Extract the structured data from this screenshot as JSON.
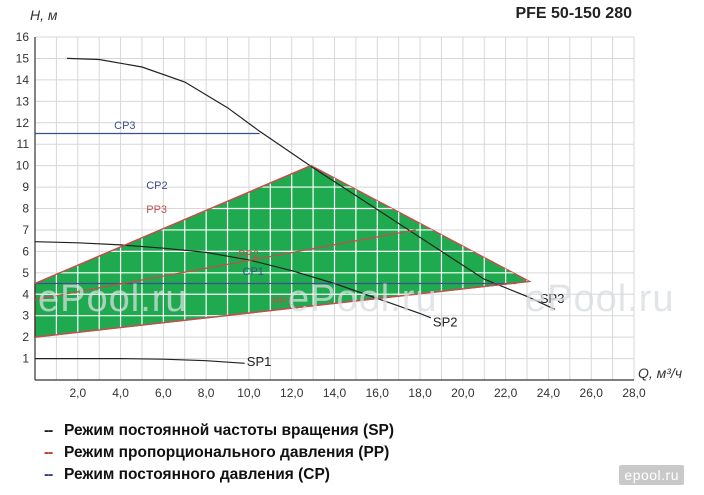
{
  "chart_data": {
    "type": "line",
    "title": "PFE 50-150 280",
    "ylabel": "H, м",
    "xlabel": "Q, м³/ч",
    "xlim": [
      0,
      28
    ],
    "ylim": [
      0,
      16
    ],
    "x_ticks": [
      "2,0",
      "4,0",
      "6,0",
      "8,0",
      "10,0",
      "12,0",
      "14,0",
      "16,0",
      "18,0",
      "20,0",
      "22,0",
      "24,0",
      "26,0",
      "28,0"
    ],
    "y_ticks": [
      "1",
      "2",
      "3",
      "4",
      "5",
      "6",
      "7",
      "8",
      "9",
      "10",
      "11",
      "12",
      "13",
      "14",
      "15",
      "16"
    ],
    "grid": true,
    "operating_area": [
      [
        0,
        4.5
      ],
      [
        12.9,
        10.0
      ],
      [
        23.1,
        4.6
      ],
      [
        0,
        2.0
      ]
    ],
    "series": [
      {
        "name": "SP",
        "color": "#222222",
        "points": [
          [
            1.5,
            15.0
          ],
          [
            3,
            14.95
          ],
          [
            5,
            14.6
          ],
          [
            7,
            13.9
          ],
          [
            9,
            12.7
          ],
          [
            10.5,
            11.6
          ],
          [
            13,
            9.9
          ],
          [
            15,
            8.6
          ],
          [
            17,
            7.3
          ],
          [
            19,
            6.0
          ],
          [
            21,
            4.7
          ],
          [
            23,
            3.9
          ],
          [
            24.3,
            3.3
          ]
        ]
      },
      {
        "name": "SP",
        "color": "#222222",
        "points": [
          [
            0,
            6.45
          ],
          [
            2,
            6.4
          ],
          [
            4,
            6.3
          ],
          [
            6,
            6.15
          ],
          [
            8,
            5.95
          ],
          [
            10,
            5.6
          ],
          [
            12,
            5.1
          ],
          [
            14,
            4.5
          ],
          [
            16,
            3.8
          ],
          [
            18,
            3.1
          ],
          [
            18.5,
            2.9
          ]
        ]
      },
      {
        "name": "SP",
        "color": "#222222",
        "points": [
          [
            0,
            1.0
          ],
          [
            2,
            1.0
          ],
          [
            4,
            1.0
          ],
          [
            6,
            0.97
          ],
          [
            8,
            0.9
          ],
          [
            9.8,
            0.78
          ]
        ]
      },
      {
        "name": "CP",
        "color": "#3c4e8c",
        "points": [
          [
            0,
            11.5
          ],
          [
            10.5,
            11.5
          ]
        ]
      },
      {
        "name": "CP",
        "color": "#3c4e8c",
        "points": [
          [
            0,
            4.5
          ],
          [
            22.5,
            4.5
          ]
        ]
      },
      {
        "name": "PP",
        "color": "#c0504d",
        "points": [
          [
            0,
            4.5
          ],
          [
            12.9,
            10.0
          ]
        ]
      },
      {
        "name": "PP",
        "color": "#c0504d",
        "points": [
          [
            0,
            3.75
          ],
          [
            17.8,
            7.0
          ]
        ]
      },
      {
        "name": "PP",
        "color": "#c0504d",
        "points": [
          [
            0,
            2.0
          ],
          [
            23.1,
            4.6
          ]
        ]
      }
    ],
    "annotations": [
      {
        "text": "SP1",
        "x": 9.9,
        "y": 0.65,
        "color": "#222222"
      },
      {
        "text": "SP2",
        "x": 18.6,
        "y": 2.5,
        "color": "#222222"
      },
      {
        "text": "SP3",
        "x": 23.6,
        "y": 3.6,
        "color": "#222222"
      },
      {
        "text": "CP3",
        "x": 3.7,
        "y": 11.7,
        "color": "#3c4e8c"
      },
      {
        "text": "CP2",
        "x": 5.2,
        "y": 8.9,
        "color": "#3c4e8c"
      },
      {
        "text": "CP1",
        "x": 9.7,
        "y": 4.9,
        "color": "#3c4e8c"
      },
      {
        "text": "PP3",
        "x": 5.2,
        "y": 7.8,
        "color": "#c0504d"
      },
      {
        "text": "PP2",
        "x": 9.5,
        "y": 5.7,
        "color": "#c0504d"
      },
      {
        "text": "PP1",
        "x": 11.1,
        "y": 3.5,
        "color": "#c0504d"
      }
    ]
  },
  "legend": [
    {
      "marker": "--",
      "color": "#222222",
      "label": "Режим постоянной частоты вращения (SP)"
    },
    {
      "marker": "--",
      "color": "#c0392b",
      "label": "Режим пропорционального давления (PP)"
    },
    {
      "marker": "--",
      "color": "#2c3e8c",
      "label": "Режим постоянного давления (CP)"
    }
  ],
  "watermarks": [
    "ePool.ru",
    "ePool.ru",
    "ePool.ru"
  ],
  "logo": "epool.ru",
  "colors": {
    "area_fill": "#1faa4f",
    "area_edge": "#c0504d",
    "grid": "#d7d7d7",
    "cp": "#3c4e8c",
    "pp": "#c0504d",
    "sp": "#222222"
  }
}
